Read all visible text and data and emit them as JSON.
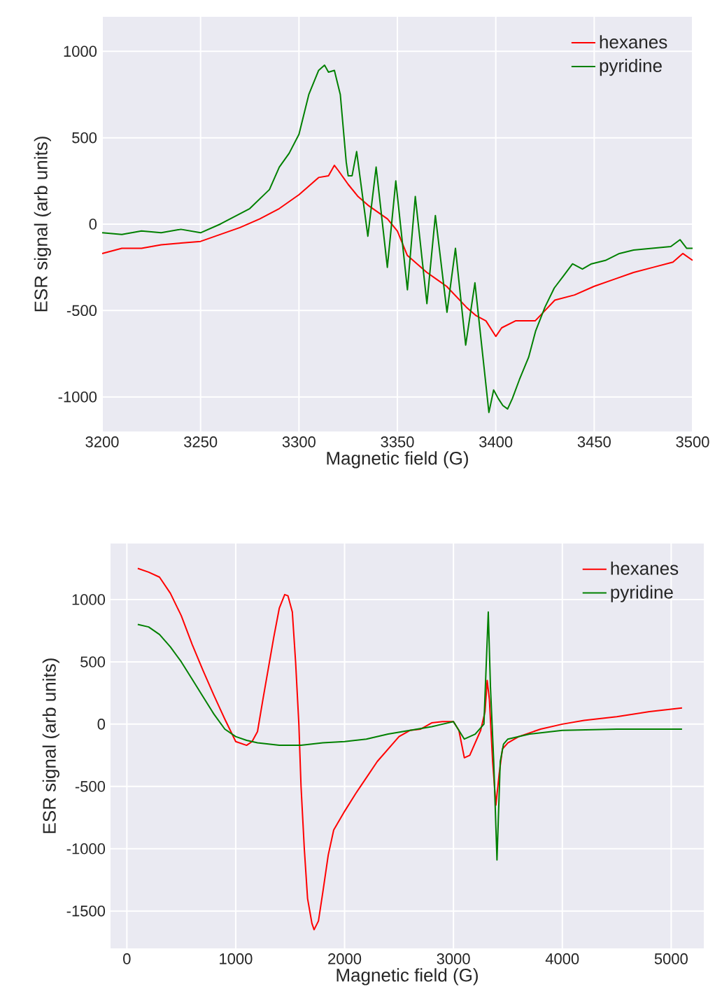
{
  "chart_data": [
    {
      "type": "line",
      "xlabel": "Magnetic field (G)",
      "ylabel": "ESR signal (arb units)",
      "xlim": [
        3200,
        3500
      ],
      "ylim": [
        -1200,
        1200
      ],
      "xticks": [
        3200,
        3250,
        3300,
        3350,
        3400,
        3450,
        3500
      ],
      "yticks": [
        -1000,
        -500,
        0,
        500,
        1000
      ],
      "grid": true,
      "legend": "top right",
      "series": [
        {
          "name": "hexanes",
          "color": "#ff0000",
          "x": [
            3200,
            3210,
            3220,
            3230,
            3240,
            3250,
            3260,
            3270,
            3280,
            3290,
            3300,
            3305,
            3310,
            3315,
            3318,
            3320,
            3325,
            3330,
            3335,
            3340,
            3345,
            3350,
            3355,
            3360,
            3365,
            3370,
            3375,
            3380,
            3385,
            3390,
            3395,
            3400,
            3403,
            3410,
            3420,
            3425,
            3430,
            3440,
            3450,
            3460,
            3470,
            3480,
            3490,
            3495,
            3500
          ],
          "values": [
            -170,
            -140,
            -140,
            -120,
            -110,
            -100,
            -60,
            -20,
            30,
            90,
            170,
            220,
            270,
            280,
            340,
            310,
            230,
            160,
            110,
            70,
            30,
            -40,
            -180,
            -230,
            -280,
            -320,
            -360,
            -420,
            -480,
            -530,
            -560,
            -650,
            -600,
            -560,
            -560,
            -500,
            -440,
            -410,
            -360,
            -320,
            -280,
            -250,
            -220,
            -170,
            -210
          ]
        },
        {
          "name": "pyridine",
          "color": "#008000",
          "x": [
            3200,
            3210,
            3220,
            3230,
            3240,
            3250,
            3260,
            3275,
            3285,
            3290,
            3295,
            3300,
            3305,
            3310,
            3313,
            3315,
            3318,
            3321,
            3324,
            3325,
            3327,
            3329.3,
            3335,
            3339.2,
            3344.9,
            3349.2,
            3355.1,
            3359.1,
            3365,
            3369.3,
            3375.2,
            3379.5,
            3384.7,
            3389.4,
            3396.5,
            3398.9,
            3401.3,
            3403.6,
            3406,
            3408.4,
            3412,
            3416.7,
            3420.2,
            3425,
            3429.7,
            3434.4,
            3439,
            3444,
            3448.6,
            3455.7,
            3462.8,
            3470,
            3479.4,
            3488.9,
            3493.6,
            3497,
            3500
          ],
          "values": [
            -50,
            -60,
            -40,
            -50,
            -30,
            -50,
            0,
            90,
            200,
            330,
            410,
            520,
            750,
            890,
            920,
            880,
            890,
            750,
            360,
            280,
            280,
            420,
            -70,
            330,
            -250,
            250,
            -380,
            160,
            -460,
            50,
            -510,
            -140,
            -700,
            -340,
            -1090,
            -960,
            -1010,
            -1050,
            -1070,
            -1010,
            -900,
            -770,
            -620,
            -480,
            -370,
            -300,
            -230,
            -260,
            -230,
            -210,
            -170,
            -150,
            -140,
            -130,
            -90,
            -140,
            -140
          ]
        }
      ]
    },
    {
      "type": "line",
      "xlabel": "Magnetic field (G)",
      "ylabel": "ESR signal (arb units)",
      "xlim": [
        -150,
        5300
      ],
      "ylim": [
        -1800,
        1450
      ],
      "xticks": [
        0,
        1000,
        2000,
        3000,
        4000,
        5000
      ],
      "yticks": [
        -1500,
        -1000,
        -500,
        0,
        500,
        1000
      ],
      "grid": true,
      "legend": "top right",
      "series": [
        {
          "name": "hexanes",
          "color": "#ff0000",
          "x": [
            100,
            200,
            300,
            400,
            500,
            600,
            700,
            800,
            900,
            1000,
            1100,
            1150,
            1200,
            1250,
            1300,
            1350,
            1400,
            1450,
            1480,
            1520,
            1550,
            1580,
            1600,
            1630,
            1660,
            1700,
            1720,
            1760,
            1800,
            1850,
            1900,
            2000,
            2100,
            2200,
            2300,
            2400,
            2500,
            2600,
            2700,
            2800,
            2900,
            3000,
            3050,
            3100,
            3150,
            3200,
            3250,
            3290,
            3310,
            3330,
            3360,
            3390,
            3420,
            3450,
            3500,
            3600,
            3800,
            4000,
            4200,
            4500,
            4800,
            5100
          ],
          "values": [
            1250,
            1220,
            1180,
            1050,
            870,
            640,
            430,
            230,
            40,
            -140,
            -170,
            -140,
            -60,
            200,
            450,
            700,
            930,
            1040,
            1030,
            900,
            500,
            0,
            -500,
            -1000,
            -1400,
            -1600,
            -1650,
            -1580,
            -1350,
            -1050,
            -850,
            -700,
            -560,
            -430,
            -300,
            -200,
            -100,
            -50,
            -40,
            10,
            20,
            20,
            -50,
            -270,
            -250,
            -150,
            -50,
            100,
            350,
            200,
            -300,
            -650,
            -400,
            -200,
            -150,
            -100,
            -40,
            0,
            30,
            60,
            100,
            130
          ]
        },
        {
          "name": "pyridine",
          "color": "#008000",
          "x": [
            100,
            200,
            300,
            400,
            500,
            600,
            700,
            800,
            900,
            1000,
            1100,
            1200,
            1400,
            1600,
            1800,
            2000,
            2200,
            2400,
            2600,
            2800,
            2900,
            3000,
            3050,
            3100,
            3200,
            3280,
            3320,
            3340,
            3370,
            3400,
            3430,
            3460,
            3500,
            3700,
            4000,
            4500,
            5100
          ],
          "values": [
            800,
            780,
            720,
            620,
            500,
            360,
            220,
            80,
            -40,
            -100,
            -130,
            -150,
            -170,
            -170,
            -150,
            -140,
            -120,
            -80,
            -50,
            -20,
            0,
            20,
            -50,
            -120,
            -80,
            0,
            900,
            300,
            -300,
            -1090,
            -300,
            -160,
            -120,
            -80,
            -50,
            -40,
            -40
          ]
        }
      ]
    }
  ]
}
